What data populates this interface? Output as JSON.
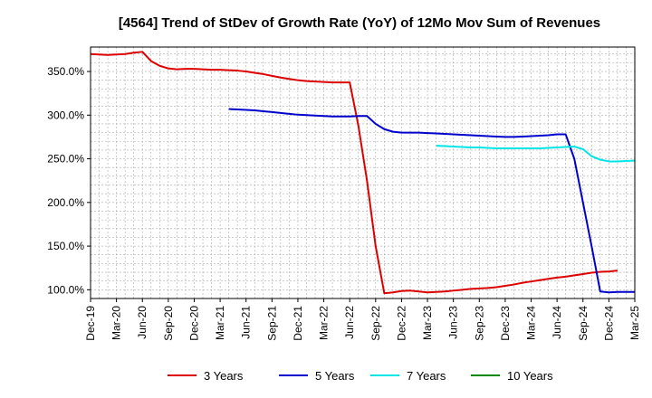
{
  "chart_data": {
    "type": "line",
    "title": "[4564]  Trend of StDev of Growth Rate (YoY) of 12Mo Mov Sum of Revenues",
    "xlabel": "",
    "ylabel": "",
    "ylim": [
      90,
      378
    ],
    "x_tick_labels": [
      "Dec-19",
      "Mar-20",
      "Jun-20",
      "Sep-20",
      "Dec-20",
      "Mar-21",
      "Jun-21",
      "Sep-21",
      "Dec-21",
      "Mar-22",
      "Jun-22",
      "Sep-22",
      "Dec-22",
      "Mar-23",
      "Jun-23",
      "Sep-23",
      "Dec-23",
      "Mar-24",
      "Jun-24",
      "Sep-24",
      "Dec-24",
      "Mar-25"
    ],
    "y_ticks": [
      100,
      150,
      200,
      250,
      300,
      350
    ],
    "y_tick_labels": [
      "100.0%",
      "150.0%",
      "200.0%",
      "250.0%",
      "300.0%",
      "350.0%"
    ],
    "grid": true,
    "legend_position": "bottom",
    "series": [
      {
        "name": "3 Years",
        "color": "#dd0000",
        "start_index": 0,
        "values": [
          370,
          369.5,
          369,
          369.5,
          370,
          371.5,
          372.5,
          362,
          356.5,
          353.5,
          352.5,
          353,
          353,
          352.5,
          352,
          352,
          351.5,
          351,
          350,
          348.5,
          347,
          345,
          343,
          341.5,
          340,
          339,
          338.5,
          338,
          337.5,
          337.5,
          337.5,
          288,
          225,
          150,
          96,
          97,
          98.5,
          99,
          98,
          97,
          97.5,
          98,
          99,
          100,
          101,
          101.5,
          102,
          103,
          104.5,
          106,
          108,
          109.5,
          111,
          112.5,
          114,
          115,
          116.5,
          118,
          119.5,
          120.5,
          121,
          122
        ]
      },
      {
        "name": "5 Years",
        "color": "#0000cc",
        "start_index": 16,
        "values": [
          307,
          306.5,
          306,
          305.5,
          304.5,
          303.5,
          302.5,
          301.5,
          300.5,
          300,
          299.5,
          299,
          298.5,
          298.5,
          298.5,
          299,
          299,
          290,
          284,
          281,
          280,
          280,
          280,
          279.5,
          279,
          278.5,
          278,
          277.5,
          277,
          276.5,
          276,
          275.5,
          275,
          275,
          275.5,
          276,
          276.5,
          277,
          278,
          278,
          250,
          200,
          150,
          98,
          97,
          97.5,
          97.5,
          97.5
        ]
      },
      {
        "name": "7 Years",
        "color": "#00e5e5",
        "start_index": 40,
        "values": [
          265,
          264.5,
          264,
          263.5,
          263,
          263,
          262.5,
          262,
          262,
          262,
          262,
          262,
          262,
          262.5,
          263,
          263.5,
          264,
          261,
          253,
          249,
          247,
          247,
          247.5,
          248
        ]
      },
      {
        "name": "10 Years",
        "color": "#008800",
        "start_index": 0,
        "values": []
      }
    ]
  }
}
